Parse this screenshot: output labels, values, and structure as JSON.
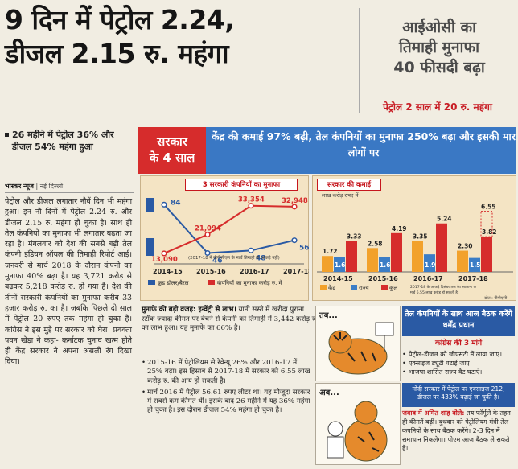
{
  "headline": {
    "line1": "9 दिन में पेट्रोल 2.24,",
    "line2": "डीजल 2.15 रु. महंगा"
  },
  "side_story": {
    "line1": "आईओसी का",
    "line2": "तिमाही मुनाफा",
    "line3": "40 फीसदी बढ़ा",
    "sub": "पेट्रोल 2 साल में 20 रु. महंगा"
  },
  "bullet": "26 महीने में पेट्रोल 36% और डीजल 54% महंगा हुआ",
  "byline": {
    "source": "भास्कर न्यूज",
    "place": "नई दिल्ली"
  },
  "left_body": "पेट्रोल और डीजल लगातार नौवें दिन भी महंगा हुआ। इन नौ दिनों में पेट्रोल 2.24 रु. और डीजल 2.15 रु. महंगा हो चुका है। साथ ही तेल कंपनियों का मुनाफा भी लगातार बढ़ता जा रहा है। मंगलवार को देश की सबसे बड़ी तेल कंपनी इंडियन ऑयल की तिमाही रिपोर्ट आई। जनवरी से मार्च 2018 के दौरान कंपनी का मुनाफा 40% बढ़ा है। यह 3,721 करोड़ से बढ़कर 5,218 करोड़ रु. हो गया है। देश की तीनों सरकारी कंपनियों का मुनाफा करीब 33 हजार करोड़ रु. का है। जबकि पिछले दो साल में पेट्रोल 20 रुपए तक महंगा हो चुका है। कांग्रेस ने इस मुद्दे पर सरकार को घेरा। प्रवक्ता पवन खेड़ा ने कहा- कर्नाटक चुनाव खत्म होते ही केंद्र सरकार ने अपना असली रंग दिखा दिया।",
  "banner": {
    "badge_line1": "सरकार",
    "badge_line2": "के 4 साल",
    "text": "केंद्र की कमाई 97% बढ़ी, तेल कंपनियों का मुनाफा 250% बढ़ा और इसकी मार लोगों पर"
  },
  "colors": {
    "blue": "#3a78c4",
    "red": "#d62c2c",
    "center": "#f2a12b",
    "state": "#3b7dc6",
    "total": "#d62c2c"
  },
  "chart_data": [
    {
      "type": "line",
      "title": "3 सरकारी कंपनियों का मुनाफा",
      "categories": [
        "2014-15",
        "2015-16",
        "2016-17",
        "2017-18"
      ],
      "series": [
        {
          "name": "क्रूड डॉलर/बैरल",
          "values": [
            84,
            46,
            48,
            56
          ]
        },
        {
          "name": "कंपनियों का मुनाफा करोड़ रु. में",
          "values": [
            13090,
            21094,
            33354,
            32948
          ]
        }
      ],
      "labels_crude": [
        "84",
        "46",
        "48",
        "56"
      ],
      "labels_profit": [
        "13,090",
        "21,094",
        "33,354",
        "32,948"
      ],
      "note": "(2017-18 में बीपीसीएल के मार्च तिमाही के आंकड़े नहीं)"
    },
    {
      "type": "bar",
      "title": "सरकार की कमाई",
      "unit": "लाख करोड़ रुपए में",
      "categories": [
        "2014-15",
        "2015-16",
        "2016-17",
        "2017-18"
      ],
      "series": [
        {
          "name": "केंद्र",
          "values": [
            1.72,
            2.58,
            3.35,
            2.3
          ]
        },
        {
          "name": "राज्य",
          "values": [
            1.61,
            1.61,
            1.9,
            1.51
          ]
        },
        {
          "name": "कुल",
          "values": [
            3.33,
            4.19,
            5.24,
            3.82
          ]
        }
      ],
      "extra_label": "6.55",
      "note": "2017-18 के आंकड़े दिसंबर तक के। सालाना कमाई 6.55 लाख करोड़ हो सकती है।",
      "source": "स्रोत : पीपीएसी"
    }
  ],
  "mid_story": {
    "lead": "मुनाफे की बड़ी वजह: इन्वेंट्री से लाभ।",
    "text": "यानी सस्ते में खरीदा पुराना स्टॉक ज्यादा कीमत पर बेचने से कंपनी को तिमाही में 3,442 करोड़ रु. का लाभ हुआ। यह मुनाफे का 66% है।",
    "bullets": [
      "2015-16 में पेट्रोलियम से रेवेन्यू 26% और 2016-17 में 25% बढ़ा। इस हिसाब से 2017-18 में सरकार को 6.55 लाख करोड़ रु. की आय हो सकती है।",
      "मार्च 2016 में पेट्रोल 56.61 रुपए लीटर था। यह मौजूदा सरकार में सबसे कम कीमत थी। इसके बाद 26 महीने में यह 36% महंगा हो चुका है। इस दौरान डीजल 54% महंगा हो चुका है।"
    ]
  },
  "cartoon": {
    "label_top": "तब...",
    "label_bottom": "अब..."
  },
  "right_box": {
    "head": "तेल कंपनियों के साथ आज बैठक करेंगे धर्मेंद्र प्रधान",
    "congress_title": "कांग्रेस की 3 मांगें",
    "demands": [
      "पेट्रोल-डीजल को जीएसटी में लाया जाए।",
      "एक्साइज ड्यूटी घटाई जाए।",
      "भाजपा शासित राज्य वैट घटाएं।"
    ],
    "strip": "मोदी सरकार में पेट्रोल पर एक्साइज 212, डीजल पर 433% बढ़ाई जा चुकी है।",
    "quote_lead": "जवाब में अमित शाह बोले:",
    "quote": "तय फॉर्मूले के तहत ही कीमतें बढ़ीं। बुधवार को पेट्रोलियम मंत्री तेल कंपनियों के साथ बैठक करेंगे। 2-3 दिन में समाधान निकलेगा। पीएम आज बैठक ले सकते हैं।"
  }
}
